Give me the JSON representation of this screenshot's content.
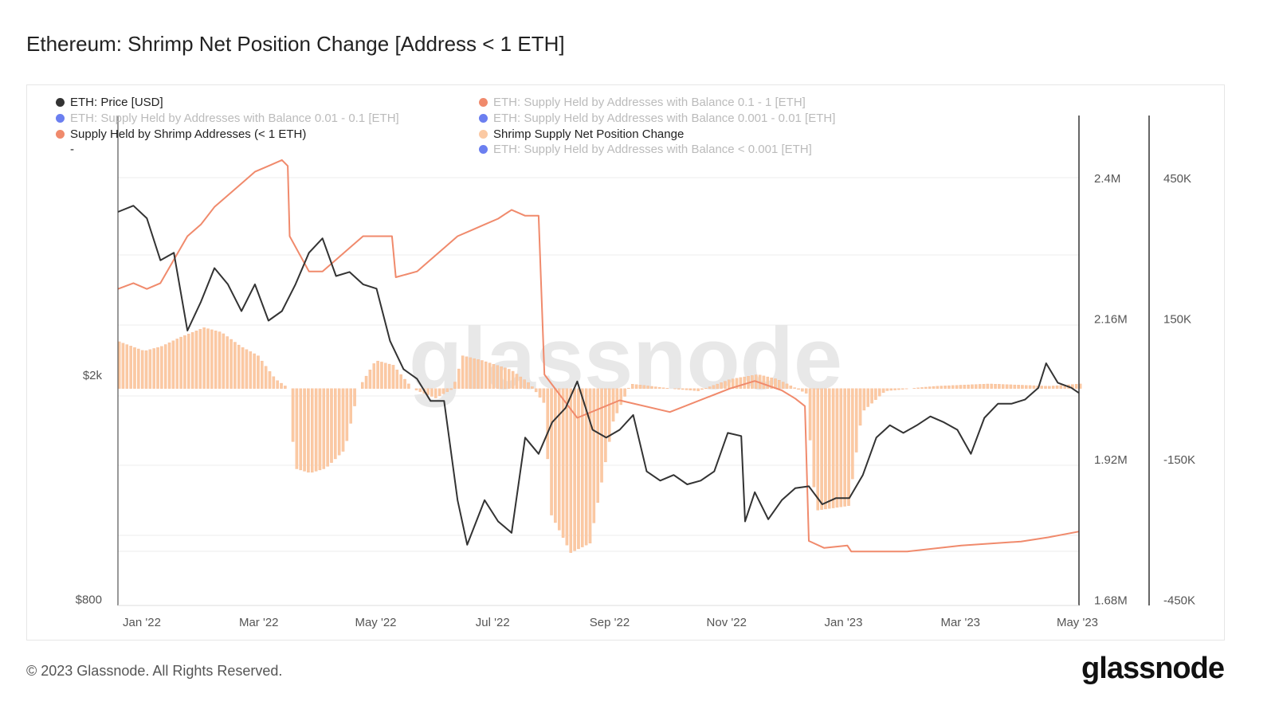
{
  "title": "Ethereum: Shrimp Net Position Change [Address < 1 ETH]",
  "footer": "© 2023 Glassnode. All Rights Reserved.",
  "logo": "glassnode",
  "watermark": "glassnode",
  "legend": [
    {
      "label": "ETH: Price [USD]",
      "color": "#333333",
      "active": true
    },
    {
      "label": "ETH: Supply Held by Addresses with Balance 0.01 - 0.1 [ETH]",
      "color": "#6b7ff0",
      "active": false
    },
    {
      "label": "Supply Held by Shrimp Addresses (< 1 ETH)",
      "color": "#f08a6c",
      "active": true
    },
    {
      "label": "-",
      "color": "",
      "active": true
    },
    {
      "label": "ETH: Supply Held by Addresses with Balance 0.1 - 1 [ETH]",
      "color": "#f08a6c",
      "active": false
    },
    {
      "label": "ETH: Supply Held by Addresses with Balance 0.001 - 0.01 [ETH]",
      "color": "#6b7ff0",
      "active": false
    },
    {
      "label": "Shrimp Supply Net Position Change",
      "color": "#fbc9a3",
      "active": true
    },
    {
      "label": "ETH: Supply Held by Addresses with Balance < 0.001 [ETH]",
      "color": "#6b7ff0",
      "active": false
    }
  ],
  "chart_data": {
    "type": "line",
    "x_ticks": [
      "Jan '22",
      "Mar '22",
      "May '22",
      "Jul '22",
      "Sep '22",
      "Nov '22",
      "Jan '23",
      "Mar '23",
      "May '23"
    ],
    "x_tick_dates": [
      "2022-01-01",
      "2022-03-01",
      "2022-05-01",
      "2022-07-01",
      "2022-09-01",
      "2022-11-01",
      "2023-01-01",
      "2023-03-01",
      "2023-05-01"
    ],
    "xlim": [
      "2021-12-19",
      "2023-05-01"
    ],
    "axes": {
      "price": {
        "scale": "log",
        "ticks": [
          {
            "v": 2000,
            "label": "$2k"
          },
          {
            "v": 800,
            "label": "$800"
          }
        ],
        "color": "#333333"
      },
      "supply": {
        "scale": "linear",
        "ticks": [
          {
            "v": 2400000,
            "label": "2.4M"
          },
          {
            "v": 2160000,
            "label": "2.16M"
          },
          {
            "v": 1920000,
            "label": "1.92M"
          },
          {
            "v": 1680000,
            "label": "1.68M"
          }
        ]
      },
      "net": {
        "scale": "linear",
        "ticks": [
          {
            "v": 450000,
            "label": "450K"
          },
          {
            "v": 150000,
            "label": "150K"
          },
          {
            "v": -150000,
            "label": "-150K"
          },
          {
            "v": -450000,
            "label": "-450K"
          }
        ]
      }
    },
    "grid": true,
    "series": [
      {
        "name": "ETH: Price [USD]",
        "axis": "price",
        "color": "#333333",
        "type": "line",
        "points": [
          [
            "2021-12-19",
            3900
          ],
          [
            "2021-12-27",
            4000
          ],
          [
            "2022-01-03",
            3800
          ],
          [
            "2022-01-10",
            3200
          ],
          [
            "2022-01-17",
            3300
          ],
          [
            "2022-01-24",
            2400
          ],
          [
            "2022-01-31",
            2700
          ],
          [
            "2022-02-07",
            3100
          ],
          [
            "2022-02-14",
            2900
          ],
          [
            "2022-02-21",
            2600
          ],
          [
            "2022-02-28",
            2900
          ],
          [
            "2022-03-07",
            2500
          ],
          [
            "2022-03-14",
            2600
          ],
          [
            "2022-03-21",
            2900
          ],
          [
            "2022-03-28",
            3300
          ],
          [
            "2022-04-04",
            3500
          ],
          [
            "2022-04-11",
            3000
          ],
          [
            "2022-04-18",
            3050
          ],
          [
            "2022-04-25",
            2900
          ],
          [
            "2022-05-02",
            2850
          ],
          [
            "2022-05-09",
            2300
          ],
          [
            "2022-05-16",
            2050
          ],
          [
            "2022-05-23",
            1970
          ],
          [
            "2022-05-30",
            1800
          ],
          [
            "2022-06-06",
            1800
          ],
          [
            "2022-06-13",
            1200
          ],
          [
            "2022-06-18",
            1000
          ],
          [
            "2022-06-27",
            1200
          ],
          [
            "2022-07-04",
            1100
          ],
          [
            "2022-07-11",
            1050
          ],
          [
            "2022-07-18",
            1550
          ],
          [
            "2022-07-25",
            1450
          ],
          [
            "2022-08-01",
            1650
          ],
          [
            "2022-08-08",
            1750
          ],
          [
            "2022-08-14",
            1950
          ],
          [
            "2022-08-22",
            1600
          ],
          [
            "2022-08-29",
            1550
          ],
          [
            "2022-09-05",
            1600
          ],
          [
            "2022-09-12",
            1700
          ],
          [
            "2022-09-19",
            1350
          ],
          [
            "2022-09-26",
            1300
          ],
          [
            "2022-10-03",
            1330
          ],
          [
            "2022-10-10",
            1280
          ],
          [
            "2022-10-17",
            1300
          ],
          [
            "2022-10-24",
            1350
          ],
          [
            "2022-10-31",
            1580
          ],
          [
            "2022-11-07",
            1560
          ],
          [
            "2022-11-09",
            1100
          ],
          [
            "2022-11-14",
            1240
          ],
          [
            "2022-11-21",
            1110
          ],
          [
            "2022-11-28",
            1200
          ],
          [
            "2022-12-05",
            1260
          ],
          [
            "2022-12-12",
            1270
          ],
          [
            "2022-12-19",
            1180
          ],
          [
            "2022-12-26",
            1210
          ],
          [
            "2023-01-02",
            1210
          ],
          [
            "2023-01-09",
            1330
          ],
          [
            "2023-01-16",
            1550
          ],
          [
            "2023-01-23",
            1630
          ],
          [
            "2023-01-30",
            1580
          ],
          [
            "2023-02-06",
            1630
          ],
          [
            "2023-02-13",
            1690
          ],
          [
            "2023-02-20",
            1650
          ],
          [
            "2023-02-27",
            1600
          ],
          [
            "2023-03-06",
            1450
          ],
          [
            "2023-03-13",
            1680
          ],
          [
            "2023-03-20",
            1780
          ],
          [
            "2023-03-27",
            1780
          ],
          [
            "2023-04-03",
            1810
          ],
          [
            "2023-04-10",
            1900
          ],
          [
            "2023-04-14",
            2100
          ],
          [
            "2023-04-20",
            1940
          ],
          [
            "2023-04-27",
            1900
          ],
          [
            "2023-05-01",
            1860
          ]
        ]
      },
      {
        "name": "Supply Held by Shrimp Addresses (< 1 ETH)",
        "axis": "supply",
        "color": "#f08a6c",
        "type": "line",
        "points": [
          [
            "2021-12-19",
            2210000
          ],
          [
            "2021-12-27",
            2220000
          ],
          [
            "2022-01-03",
            2210000
          ],
          [
            "2022-01-10",
            2220000
          ],
          [
            "2022-01-17",
            2260000
          ],
          [
            "2022-01-24",
            2300000
          ],
          [
            "2022-01-31",
            2320000
          ],
          [
            "2022-02-07",
            2350000
          ],
          [
            "2022-02-14",
            2370000
          ],
          [
            "2022-02-21",
            2390000
          ],
          [
            "2022-02-28",
            2410000
          ],
          [
            "2022-03-07",
            2420000
          ],
          [
            "2022-03-14",
            2430000
          ],
          [
            "2022-03-17",
            2420000
          ],
          [
            "2022-03-18",
            2300000
          ],
          [
            "2022-03-28",
            2240000
          ],
          [
            "2022-04-04",
            2240000
          ],
          [
            "2022-04-11",
            2260000
          ],
          [
            "2022-04-18",
            2280000
          ],
          [
            "2022-04-25",
            2300000
          ],
          [
            "2022-05-02",
            2300000
          ],
          [
            "2022-05-10",
            2300000
          ],
          [
            "2022-05-12",
            2230000
          ],
          [
            "2022-05-23",
            2240000
          ],
          [
            "2022-05-30",
            2260000
          ],
          [
            "2022-06-06",
            2280000
          ],
          [
            "2022-06-13",
            2300000
          ],
          [
            "2022-06-20",
            2310000
          ],
          [
            "2022-06-27",
            2320000
          ],
          [
            "2022-07-04",
            2330000
          ],
          [
            "2022-07-11",
            2345000
          ],
          [
            "2022-07-18",
            2335000
          ],
          [
            "2022-07-25",
            2335000
          ],
          [
            "2022-07-28",
            2064000
          ],
          [
            "2022-08-14",
            1990000
          ],
          [
            "2022-09-05",
            2020000
          ],
          [
            "2022-10-01",
            2000000
          ],
          [
            "2022-11-01",
            2040000
          ],
          [
            "2022-11-14",
            2053000
          ],
          [
            "2022-11-28",
            2037000
          ],
          [
            "2022-12-05",
            2023000
          ],
          [
            "2022-12-10",
            2010000
          ],
          [
            "2022-12-12",
            1780000
          ],
          [
            "2022-12-20",
            1768000
          ],
          [
            "2023-01-01",
            1772000
          ],
          [
            "2023-01-03",
            1762000
          ],
          [
            "2023-02-01",
            1762000
          ],
          [
            "2023-03-01",
            1772000
          ],
          [
            "2023-04-01",
            1779000
          ],
          [
            "2023-04-15",
            1786000
          ],
          [
            "2023-05-01",
            1796000
          ]
        ]
      },
      {
        "name": "Shrimp Supply Net Position Change",
        "axis": "net",
        "color": "#fbc9a3",
        "type": "bar",
        "points": [
          [
            "2021-12-19",
            100000
          ],
          [
            "2022-01-01",
            80000
          ],
          [
            "2022-01-10",
            90000
          ],
          [
            "2022-01-20",
            110000
          ],
          [
            "2022-02-01",
            130000
          ],
          [
            "2022-02-10",
            120000
          ],
          [
            "2022-02-20",
            90000
          ],
          [
            "2022-03-01",
            70000
          ],
          [
            "2022-03-10",
            20000
          ],
          [
            "2022-03-17",
            0
          ],
          [
            "2022-03-20",
            -170000
          ],
          [
            "2022-03-28",
            -180000
          ],
          [
            "2022-04-05",
            -170000
          ],
          [
            "2022-04-15",
            -130000
          ],
          [
            "2022-04-22",
            0
          ],
          [
            "2022-05-01",
            60000
          ],
          [
            "2022-05-10",
            50000
          ],
          [
            "2022-05-20",
            0
          ],
          [
            "2022-06-01",
            -20000
          ],
          [
            "2022-06-10",
            0
          ],
          [
            "2022-06-15",
            70000
          ],
          [
            "2022-06-25",
            60000
          ],
          [
            "2022-07-10",
            40000
          ],
          [
            "2022-07-20",
            10000
          ],
          [
            "2022-07-27",
            -30000
          ],
          [
            "2022-07-31",
            -270000
          ],
          [
            "2022-08-10",
            -350000
          ],
          [
            "2022-08-20",
            -330000
          ],
          [
            "2022-09-01",
            -70000
          ],
          [
            "2022-09-10",
            10000
          ],
          [
            "2022-10-01",
            0
          ],
          [
            "2022-10-15",
            -5000
          ],
          [
            "2022-11-01",
            20000
          ],
          [
            "2022-11-15",
            30000
          ],
          [
            "2022-11-25",
            20000
          ],
          [
            "2022-12-05",
            0
          ],
          [
            "2022-12-10",
            -10000
          ],
          [
            "2022-12-15",
            -260000
          ],
          [
            "2023-01-01",
            -250000
          ],
          [
            "2023-01-08",
            -50000
          ],
          [
            "2023-01-20",
            -5000
          ],
          [
            "2023-02-15",
            5000
          ],
          [
            "2023-03-15",
            10000
          ],
          [
            "2023-04-15",
            5000
          ],
          [
            "2023-05-01",
            10000
          ]
        ]
      }
    ]
  }
}
